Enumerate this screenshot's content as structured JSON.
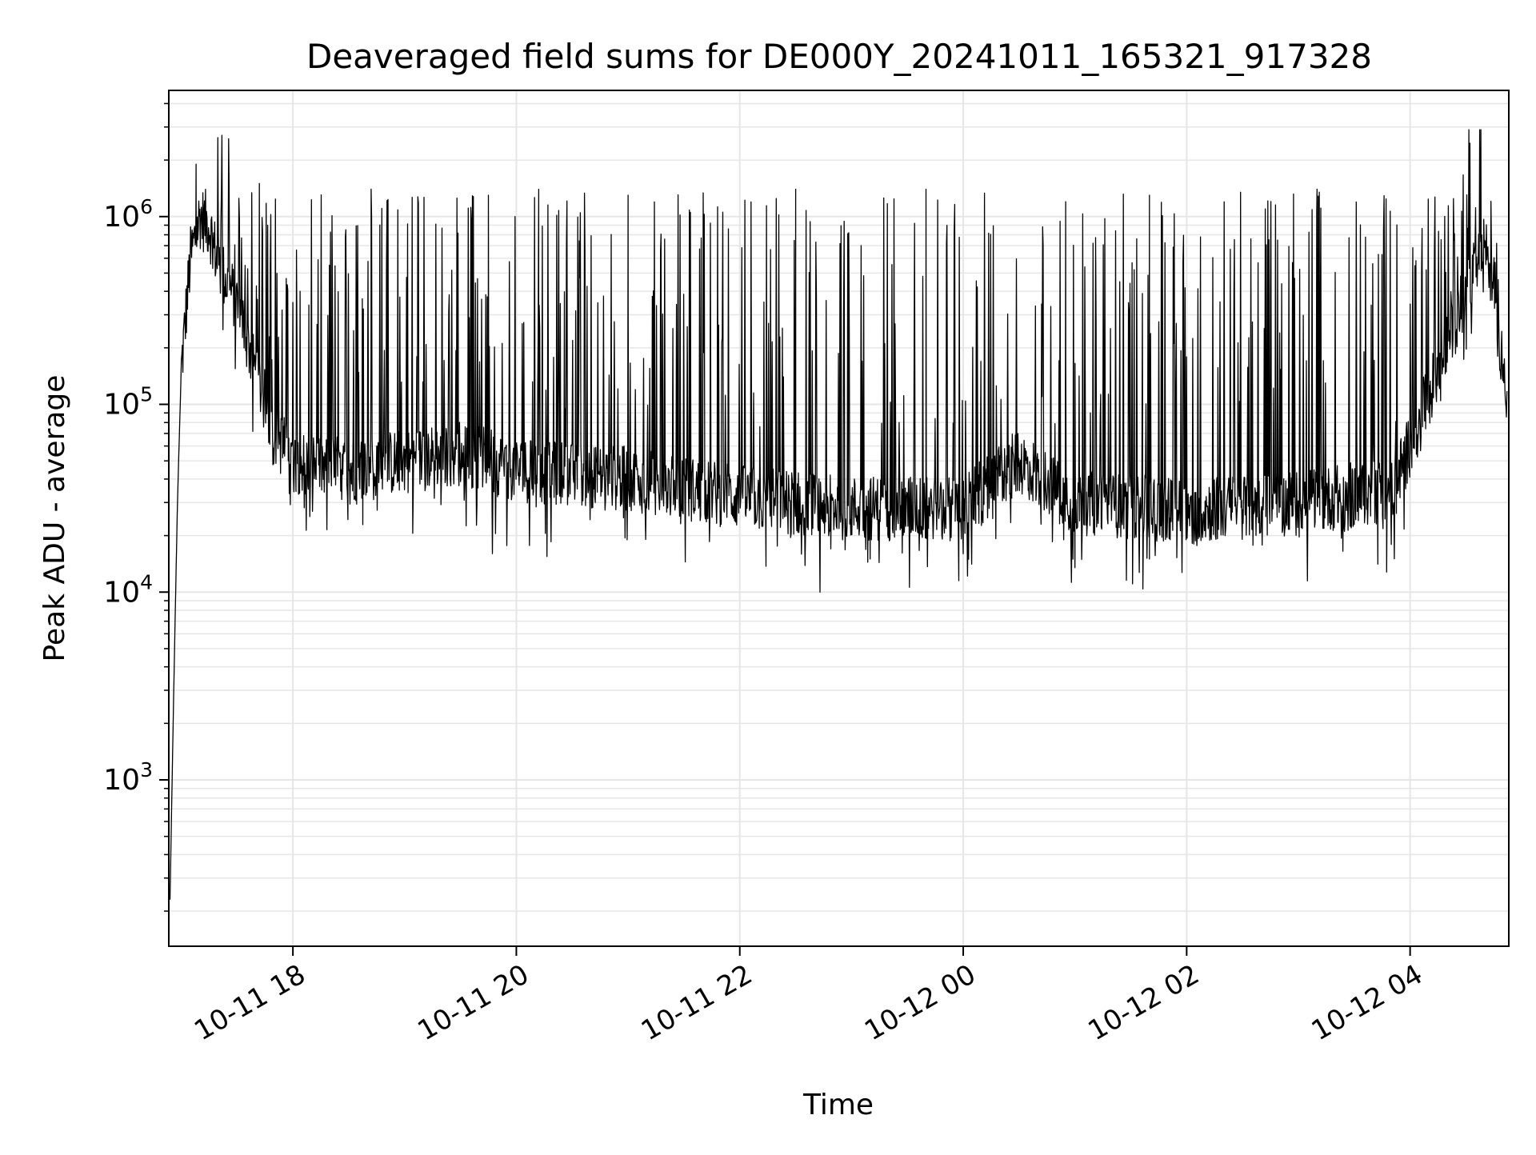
{
  "chart_data": {
    "type": "line",
    "title": "Deaveraged field sums for DE000Y_20241011_165321_917328",
    "xlabel": "Time",
    "ylabel": "Peak ADU - average",
    "yscale": "log",
    "ylim": [
      130,
      4700000
    ],
    "xlim": [
      "2024-10-11 16:53:21",
      "2024-10-12 04:53:00"
    ],
    "grid": true,
    "x_ticks": [
      {
        "value": "2024-10-11 18:00",
        "label": "10-11 18"
      },
      {
        "value": "2024-10-11 20:00",
        "label": "10-11 20"
      },
      {
        "value": "2024-10-11 22:00",
        "label": "10-11 22"
      },
      {
        "value": "2024-10-12 00:00",
        "label": "10-12 00"
      },
      {
        "value": "2024-10-12 02:00",
        "label": "10-12 02"
      },
      {
        "value": "2024-10-12 04:00",
        "label": "10-12 04"
      }
    ],
    "y_ticks": [
      {
        "value": 1000,
        "base": "10",
        "exp": "3"
      },
      {
        "value": 10000,
        "base": "10",
        "exp": "4"
      },
      {
        "value": 100000,
        "base": "10",
        "exp": "5"
      },
      {
        "value": 1000000,
        "base": "10",
        "exp": "6"
      }
    ],
    "series": [
      {
        "color": "#000000",
        "baseline": [
          [
            "2024-10-11 16:54",
            230
          ],
          [
            "2024-10-11 16:56",
            3000
          ],
          [
            "2024-10-11 16:58",
            30000
          ],
          [
            "2024-10-11 17:00",
            150000
          ],
          [
            "2024-10-11 17:05",
            600000
          ],
          [
            "2024-10-11 17:10",
            1000000
          ],
          [
            "2024-10-11 17:15",
            900000
          ],
          [
            "2024-10-11 17:20",
            550000
          ],
          [
            "2024-10-11 17:30",
            350000
          ],
          [
            "2024-10-11 17:40",
            150000
          ],
          [
            "2024-10-11 17:50",
            70000
          ],
          [
            "2024-10-11 18:00",
            50000
          ],
          [
            "2024-10-11 18:30",
            45000
          ],
          [
            "2024-10-11 19:00",
            50000
          ],
          [
            "2024-10-11 19:30",
            55000
          ],
          [
            "2024-10-11 20:00",
            45000
          ],
          [
            "2024-10-11 21:00",
            40000
          ],
          [
            "2024-10-11 22:00",
            32000
          ],
          [
            "2024-10-11 23:00",
            28000
          ],
          [
            "2024-10-12 00:00",
            28000
          ],
          [
            "2024-10-12 00:30",
            50000
          ],
          [
            "2024-10-12 01:00",
            30000
          ],
          [
            "2024-10-12 02:00",
            27000
          ],
          [
            "2024-10-12 03:00",
            30000
          ],
          [
            "2024-10-12 03:50",
            35000
          ],
          [
            "2024-10-12 04:00",
            60000
          ],
          [
            "2024-10-12 04:15",
            150000
          ],
          [
            "2024-10-12 04:30",
            400000
          ],
          [
            "2024-10-12 04:40",
            700000
          ],
          [
            "2024-10-12 04:45",
            400000
          ],
          [
            "2024-10-12 04:50",
            150000
          ],
          [
            "2024-10-12 04:52",
            80000
          ]
        ],
        "peaks": [
          [
            "2024-10-11 17:08",
            1900000
          ],
          [
            "2024-10-11 17:42",
            1500000
          ],
          [
            "2024-10-11 18:42",
            1400000
          ],
          [
            "2024-10-11 19:45",
            1300000
          ],
          [
            "2024-10-11 20:12",
            1400000
          ],
          [
            "2024-10-11 21:00",
            1300000
          ],
          [
            "2024-10-11 22:30",
            1400000
          ],
          [
            "2024-10-11 23:40",
            1400000
          ],
          [
            "2024-10-12 00:55",
            1200000
          ],
          [
            "2024-10-12 01:40",
            1300000
          ],
          [
            "2024-10-12 03:10",
            1400000
          ],
          [
            "2024-10-12 04:38",
            2900000
          ]
        ],
        "troughs": [
          [
            "2024-10-11 23:10",
            15000
          ],
          [
            "2024-10-12 00:00",
            16000
          ],
          [
            "2024-10-12 01:00",
            13500
          ],
          [
            "2024-10-12 01:40",
            15000
          ]
        ]
      }
    ]
  }
}
